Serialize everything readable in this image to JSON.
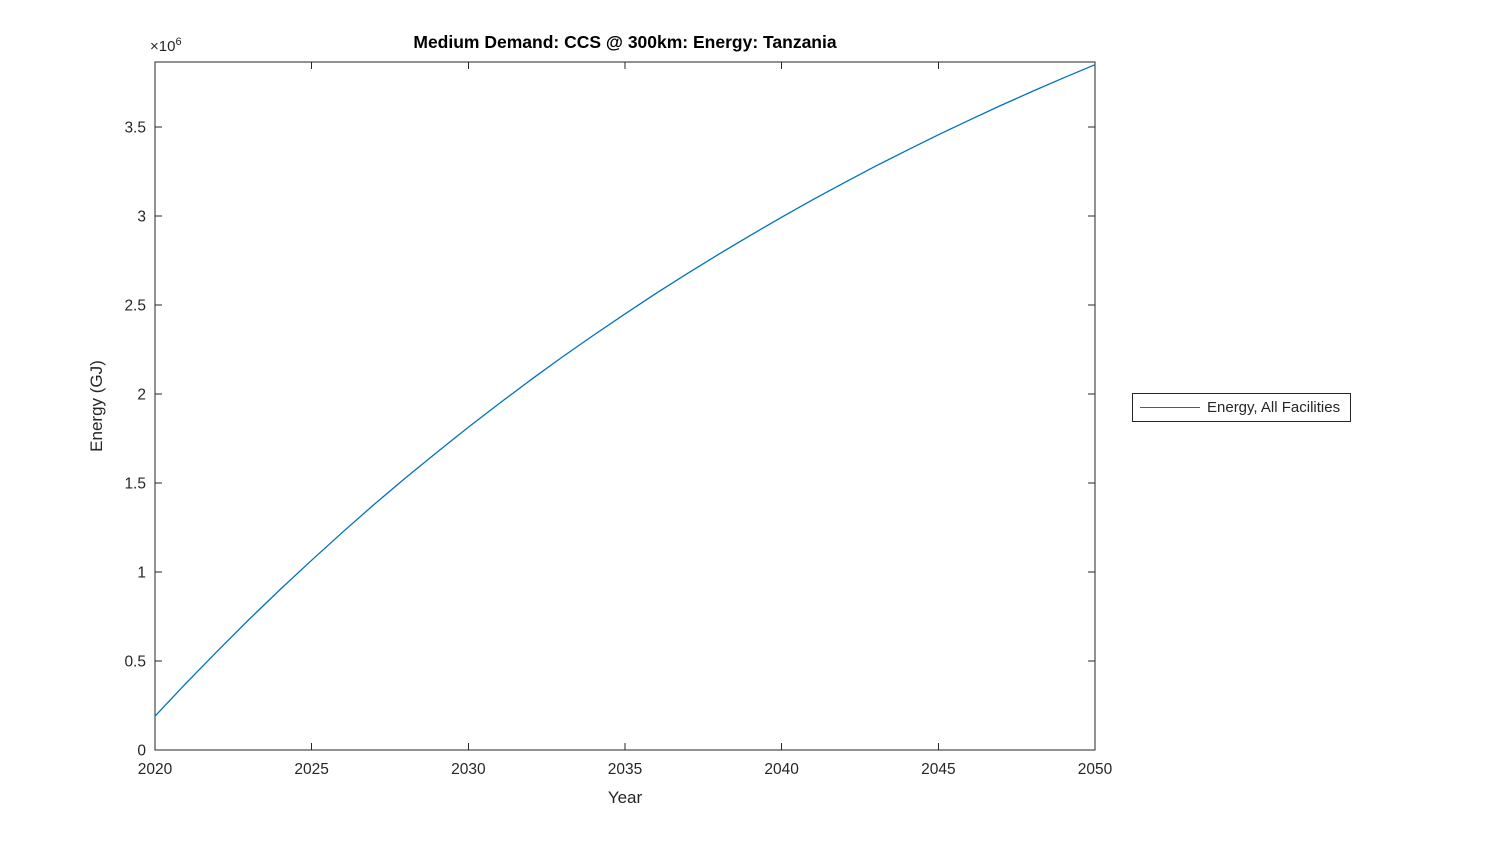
{
  "colors": {
    "line": "#0072BD",
    "axis": "#262626",
    "title": "#000000",
    "background": "#ffffff"
  },
  "legend": {
    "position": "east-outside",
    "entries": [
      {
        "label": "Energy, All Facilities",
        "color": "#0072BD"
      }
    ]
  },
  "chart_data": {
    "type": "line",
    "title": "Medium Demand: CCS @ 300km: Energy: Tanzania",
    "xlabel": "Year",
    "ylabel": "Energy (GJ)",
    "y_axis_multiplier": {
      "base": "×10",
      "exp": "6"
    },
    "y_unit_note": "values_e6 are in units of 10^6 GJ",
    "x_ticks": [
      2020,
      2025,
      2030,
      2035,
      2040,
      2045,
      2050
    ],
    "y_ticks_e6": [
      0,
      0.5,
      1,
      1.5,
      2,
      2.5,
      3,
      3.5
    ],
    "xlim": [
      2020,
      2050
    ],
    "ylim_e6": [
      0,
      3.865
    ],
    "grid": false,
    "legend_position": "east-outside",
    "x": [
      2020,
      2021,
      2022,
      2023,
      2024,
      2025,
      2026,
      2027,
      2028,
      2029,
      2030,
      2031,
      2032,
      2033,
      2034,
      2035,
      2036,
      2037,
      2038,
      2039,
      2040,
      2041,
      2042,
      2043,
      2044,
      2045,
      2046,
      2047,
      2048,
      2049,
      2050
    ],
    "series": [
      {
        "name": "Energy, All Facilities",
        "color": "#0072BD",
        "values_e6": [
          0.19,
          0.377,
          0.557,
          0.733,
          0.902,
          1.066,
          1.226,
          1.38,
          1.529,
          1.673,
          1.813,
          1.949,
          2.08,
          2.208,
          2.331,
          2.45,
          2.566,
          2.678,
          2.786,
          2.891,
          2.993,
          3.092,
          3.187,
          3.28,
          3.369,
          3.456,
          3.54,
          3.621,
          3.7,
          3.776,
          3.85
        ]
      }
    ]
  }
}
